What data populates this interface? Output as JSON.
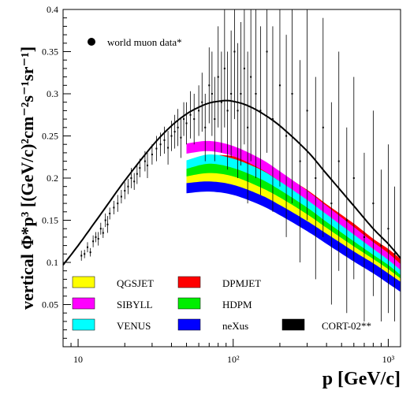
{
  "chart_data": {
    "type": "line",
    "xscale": "log",
    "xlim": [
      8,
      1200
    ],
    "ylim": [
      0,
      0.4
    ],
    "xticks": [
      {
        "value": 10,
        "label": "10"
      },
      {
        "value": 100,
        "label": "10²"
      },
      {
        "value": 1000,
        "label": "10³"
      }
    ],
    "yticks": [
      0.05,
      0.1,
      0.15,
      0.2,
      0.25,
      0.3,
      0.35,
      0.4
    ],
    "ytick_labels": [
      "0.05",
      "0.1",
      "0.15",
      "0.2",
      "0.25",
      "0.3",
      "0.35",
      "0.4"
    ],
    "xlabel": "p [GeV/c]",
    "ylabel": "vertical Φ*p³ [(GeV/c)²cm⁻²s⁻¹sr⁻¹]",
    "data_legend": "world muon data*",
    "cort_curve": {
      "name": "CORT-02**",
      "color": "#000000",
      "x": [
        8,
        10,
        15,
        20,
        30,
        40,
        50,
        60,
        70,
        80,
        90,
        100,
        120,
        150,
        200,
        300,
        400,
        600,
        800,
        1000,
        1200
      ],
      "y": [
        0.097,
        0.12,
        0.165,
        0.197,
        0.238,
        0.262,
        0.276,
        0.284,
        0.289,
        0.291,
        0.292,
        0.291,
        0.287,
        0.278,
        0.262,
        0.232,
        0.205,
        0.167,
        0.14,
        0.122,
        0.105
      ]
    },
    "bands": [
      {
        "name": "DPMJET",
        "color": "#ff0000",
        "x": [
          50,
          70,
          100,
          150,
          200,
          300,
          400,
          600,
          800,
          1000,
          1200
        ],
        "y": [
          0.21,
          0.22,
          0.22,
          0.21,
          0.2,
          0.18,
          0.163,
          0.14,
          0.122,
          0.11,
          0.098
        ]
      },
      {
        "name": "SIBYLL",
        "color": "#ff00ff",
        "x": [
          50,
          70,
          100,
          150,
          200,
          300,
          400,
          600,
          800,
          1000,
          1200
        ],
        "y": [
          0.235,
          0.238,
          0.232,
          0.217,
          0.202,
          0.179,
          0.161,
          0.136,
          0.118,
          0.105,
          0.092
        ]
      },
      {
        "name": "VENUS",
        "color": "#00ffff",
        "x": [
          50,
          70,
          100,
          150,
          200,
          300,
          400,
          600,
          800,
          1000,
          1200
        ],
        "y": [
          0.215,
          0.222,
          0.217,
          0.204,
          0.19,
          0.168,
          0.151,
          0.127,
          0.11,
          0.097,
          0.085
        ]
      },
      {
        "name": "HDPM",
        "color": "#00ee00",
        "x": [
          50,
          70,
          100,
          150,
          200,
          300,
          400,
          600,
          800,
          1000,
          1200
        ],
        "y": [
          0.205,
          0.211,
          0.206,
          0.193,
          0.18,
          0.159,
          0.142,
          0.119,
          0.103,
          0.091,
          0.079
        ]
      },
      {
        "name": "QGSJET",
        "color": "#ffff00",
        "x": [
          50,
          70,
          100,
          150,
          200,
          300,
          400,
          600,
          800,
          1000,
          1200
        ],
        "y": [
          0.196,
          0.2,
          0.196,
          0.183,
          0.171,
          0.151,
          0.135,
          0.113,
          0.098,
          0.086,
          0.075
        ]
      },
      {
        "name": "neXus",
        "color": "#0000ff",
        "x": [
          50,
          70,
          100,
          150,
          200,
          300,
          400,
          600,
          800,
          1000,
          1200
        ],
        "y": [
          0.188,
          0.19,
          0.186,
          0.174,
          0.162,
          0.143,
          0.128,
          0.107,
          0.093,
          0.081,
          0.071
        ]
      }
    ],
    "band_halfwidth": 0.006,
    "muon_data": [
      [
        10.5,
        0.108,
        0.006
      ],
      [
        11,
        0.11,
        0.005
      ],
      [
        11.5,
        0.118,
        0.006
      ],
      [
        12,
        0.112,
        0.005
      ],
      [
        12.5,
        0.125,
        0.007
      ],
      [
        13,
        0.13,
        0.006
      ],
      [
        13.5,
        0.128,
        0.008
      ],
      [
        14,
        0.14,
        0.007
      ],
      [
        14.5,
        0.135,
        0.006
      ],
      [
        15,
        0.15,
        0.008
      ],
      [
        15.5,
        0.145,
        0.01
      ],
      [
        16,
        0.158,
        0.007
      ],
      [
        17,
        0.165,
        0.008
      ],
      [
        18,
        0.17,
        0.01
      ],
      [
        19,
        0.178,
        0.008
      ],
      [
        20,
        0.185,
        0.01
      ],
      [
        21,
        0.19,
        0.009
      ],
      [
        22,
        0.2,
        0.012
      ],
      [
        23,
        0.196,
        0.01
      ],
      [
        24,
        0.205,
        0.012
      ],
      [
        25,
        0.212,
        0.011
      ],
      [
        27,
        0.22,
        0.012
      ],
      [
        28,
        0.215,
        0.015
      ],
      [
        30,
        0.228,
        0.012
      ],
      [
        32,
        0.235,
        0.015
      ],
      [
        34,
        0.24,
        0.014
      ],
      [
        36,
        0.245,
        0.016
      ],
      [
        38,
        0.236,
        0.02
      ],
      [
        40,
        0.25,
        0.018
      ],
      [
        42,
        0.255,
        0.02
      ],
      [
        44,
        0.26,
        0.022
      ],
      [
        46,
        0.248,
        0.024
      ],
      [
        48,
        0.27,
        0.02
      ],
      [
        50,
        0.265,
        0.025
      ],
      [
        53,
        0.275,
        0.028
      ],
      [
        56,
        0.27,
        0.03
      ],
      [
        60,
        0.28,
        0.03
      ],
      [
        63,
        0.29,
        0.035
      ],
      [
        66,
        0.26,
        0.04
      ],
      [
        70,
        0.31,
        0.045
      ],
      [
        73,
        0.3,
        0.05
      ],
      [
        76,
        0.27,
        0.05
      ],
      [
        80,
        0.32,
        0.06
      ],
      [
        84,
        0.29,
        0.06
      ],
      [
        88,
        0.33,
        0.07
      ],
      [
        92,
        0.28,
        0.07
      ],
      [
        97,
        0.3,
        0.075
      ],
      [
        102,
        0.35,
        0.08
      ],
      [
        107,
        0.28,
        0.08
      ],
      [
        112,
        0.3,
        0.085
      ],
      [
        118,
        0.33,
        0.09
      ],
      [
        124,
        0.26,
        0.09
      ],
      [
        130,
        0.32,
        0.1
      ],
      [
        140,
        0.3,
        0.1
      ],
      [
        150,
        0.28,
        0.1
      ],
      [
        165,
        0.35,
        0.12
      ],
      [
        180,
        0.27,
        0.11
      ],
      [
        200,
        0.31,
        0.12
      ],
      [
        220,
        0.25,
        0.12
      ],
      [
        240,
        0.3,
        0.13
      ],
      [
        270,
        0.22,
        0.12
      ],
      [
        300,
        0.28,
        0.13
      ],
      [
        340,
        0.2,
        0.12
      ],
      [
        380,
        0.26,
        0.13
      ],
      [
        430,
        0.17,
        0.12
      ],
      [
        480,
        0.22,
        0.13
      ],
      [
        540,
        0.15,
        0.11
      ],
      [
        600,
        0.2,
        0.12
      ],
      [
        700,
        0.13,
        0.1
      ],
      [
        800,
        0.17,
        0.11
      ],
      [
        900,
        0.12,
        0.09
      ],
      [
        1000,
        0.14,
        0.1
      ],
      [
        1100,
        0.11,
        0.08
      ]
    ],
    "legend": [
      {
        "name": "QGSJET",
        "color": "#ffff00"
      },
      {
        "name": "DPMJET",
        "color": "#ff0000"
      },
      {
        "name": "SIBYLL",
        "color": "#ff00ff"
      },
      {
        "name": "HDPM",
        "color": "#00ee00"
      },
      {
        "name": "VENUS",
        "color": "#00ffff"
      },
      {
        "name": "neXus",
        "color": "#0000ff"
      },
      {
        "name": "CORT-02**",
        "color": "#000000"
      }
    ]
  }
}
